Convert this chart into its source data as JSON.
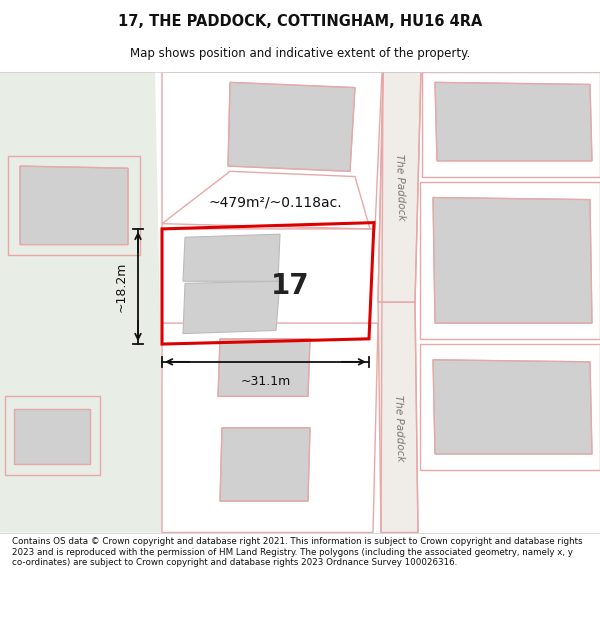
{
  "title": "17, THE PADDOCK, COTTINGHAM, HU16 4RA",
  "subtitle": "Map shows position and indicative extent of the property.",
  "footer": "Contains OS data © Crown copyright and database right 2021. This information is subject to Crown copyright and database rights 2023 and is reproduced with the permission of HM Land Registry. The polygons (including the associated geometry, namely x, y co-ordinates) are subject to Crown copyright and database rights 2023 Ordnance Survey 100026316.",
  "area_label": "~479m²/~0.118ac.",
  "number_label": "17",
  "width_label": "~31.1m",
  "height_label": "~18.2m",
  "bg_color": "#f0ede8",
  "left_bg_color": "#e8ede6",
  "road_bg_color": "#f0ede8",
  "plot_border_color": "#dd0000",
  "building_fill": "#d0d0d0",
  "building_border": "#bbbbbb",
  "prop_color": "#e8a8a8",
  "dim_line_color": "#111111",
  "road_label_color": "#777777",
  "text_color": "#111111"
}
